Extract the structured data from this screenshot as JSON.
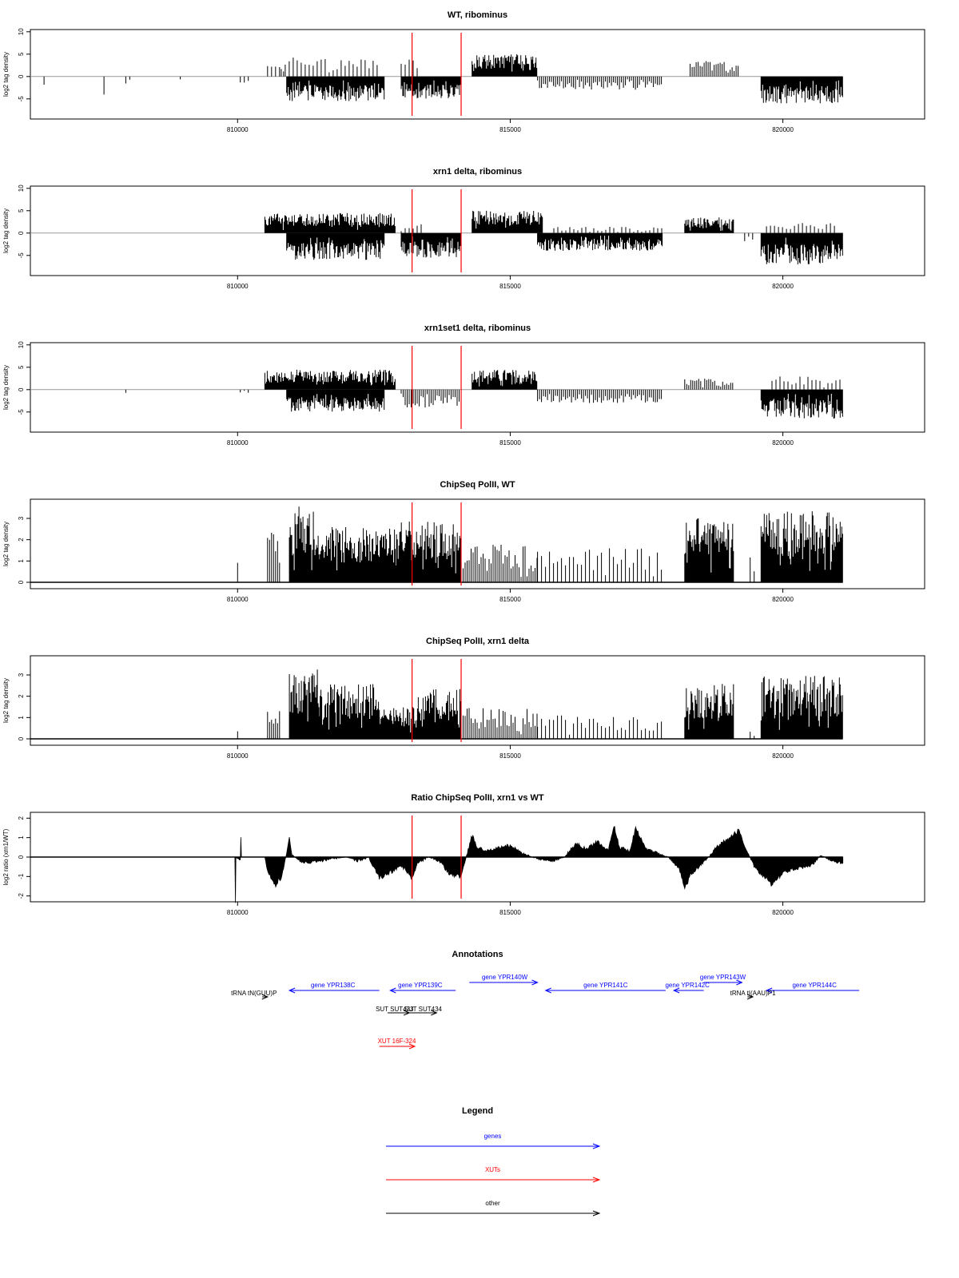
{
  "chart_data": [
    {
      "type": "bar",
      "title": "WT, ribominus",
      "ylabel": "log2 tag density",
      "xlabel": "",
      "xlim": [
        806200,
        822600
      ],
      "ylim": [
        -9.5,
        10.5
      ],
      "yticks": [
        10,
        5,
        0,
        -5
      ],
      "ytick_labels": [
        "10",
        "5",
        "0",
        "-5"
      ],
      "xticks": [
        810000,
        815000,
        820000
      ],
      "xtick_labels": [
        "810000",
        "815000",
        "820000"
      ],
      "track_start": 806200,
      "track_end": 821100,
      "markers": [
        813200,
        814100
      ],
      "marker_color": "#ff0000",
      "segments": [
        {
          "x0": 806450,
          "x1": 806500,
          "base": 0,
          "amp": 2,
          "sign": -1,
          "density": "sparse"
        },
        {
          "x0": 807550,
          "x1": 807600,
          "base": 0,
          "amp": 4.5,
          "sign": -1,
          "density": "sparse"
        },
        {
          "x0": 807950,
          "x1": 808050,
          "base": 0,
          "amp": 1.8,
          "sign": -1,
          "density": "sparse"
        },
        {
          "x0": 808950,
          "x1": 809000,
          "base": 0,
          "amp": 1,
          "sign": -1,
          "density": "sparse"
        },
        {
          "x0": 810050,
          "x1": 810200,
          "base": 0,
          "amp": 2,
          "sign": -1,
          "density": "sparse"
        },
        {
          "x0": 810550,
          "x1": 810900,
          "base": 0,
          "amp": 2.5,
          "sign": 1,
          "density": "sparse"
        },
        {
          "x0": 810800,
          "x1": 812600,
          "base": 0,
          "amp": 4.5,
          "sign": 1,
          "density": "sparse"
        },
        {
          "x0": 810900,
          "x1": 812700,
          "base": 0,
          "amp": 5.5,
          "sign": -1,
          "density": "dense"
        },
        {
          "x0": 813000,
          "x1": 813300,
          "base": 0,
          "amp": 4,
          "sign": 1,
          "density": "sparse"
        },
        {
          "x0": 813000,
          "x1": 814100,
          "base": 0,
          "amp": 5,
          "sign": -1,
          "density": "dense"
        },
        {
          "x0": 814300,
          "x1": 815500,
          "base": 0,
          "amp": 5,
          "sign": 1,
          "density": "dense"
        },
        {
          "x0": 815500,
          "x1": 817800,
          "base": 0,
          "amp": 3,
          "sign": -1,
          "density": "medium"
        },
        {
          "x0": 818300,
          "x1": 819200,
          "base": 0,
          "amp": 3.5,
          "sign": 1,
          "density": "medium"
        },
        {
          "x0": 819600,
          "x1": 821100,
          "base": 0,
          "amp": 6,
          "sign": -1,
          "density": "dense"
        }
      ]
    },
    {
      "type": "bar",
      "title": "xrn1 delta, ribominus",
      "ylabel": "log2 tag density",
      "xlabel": "",
      "xlim": [
        806200,
        822600
      ],
      "ylim": [
        -9.5,
        10.5
      ],
      "yticks": [
        10,
        5,
        0,
        -5
      ],
      "ytick_labels": [
        "10",
        "5",
        "0",
        "-5"
      ],
      "xticks": [
        810000,
        815000,
        820000
      ],
      "xtick_labels": [
        "810000",
        "815000",
        "820000"
      ],
      "track_start": 806200,
      "track_end": 821100,
      "markers": [
        813200,
        814100
      ],
      "marker_color": "#ff0000",
      "segments": [
        {
          "x0": 810500,
          "x1": 812900,
          "base": 0,
          "amp": 4.5,
          "sign": 1,
          "density": "dense"
        },
        {
          "x0": 810900,
          "x1": 812700,
          "base": 0,
          "amp": 6,
          "sign": -1,
          "density": "dense"
        },
        {
          "x0": 813000,
          "x1": 814100,
          "base": 0,
          "amp": 5.5,
          "sign": -1,
          "density": "dense"
        },
        {
          "x0": 813000,
          "x1": 813400,
          "base": 0,
          "amp": 2.5,
          "sign": 1,
          "density": "sparse"
        },
        {
          "x0": 814300,
          "x1": 815600,
          "base": 0,
          "amp": 5,
          "sign": 1,
          "density": "dense"
        },
        {
          "x0": 815500,
          "x1": 817800,
          "base": 0,
          "amp": 4,
          "sign": -1,
          "density": "dense"
        },
        {
          "x0": 815800,
          "x1": 817800,
          "base": 0,
          "amp": 1.5,
          "sign": 1,
          "density": "sparse"
        },
        {
          "x0": 818200,
          "x1": 819100,
          "base": 0,
          "amp": 3.5,
          "sign": 1,
          "density": "dense"
        },
        {
          "x0": 819300,
          "x1": 819500,
          "base": 0,
          "amp": 2,
          "sign": -1,
          "density": "sparse"
        },
        {
          "x0": 819600,
          "x1": 821100,
          "base": 0,
          "amp": 7,
          "sign": -1,
          "density": "dense"
        },
        {
          "x0": 819700,
          "x1": 821000,
          "base": 0,
          "amp": 2.5,
          "sign": 1,
          "density": "sparse"
        }
      ]
    },
    {
      "type": "bar",
      "title": "xrn1set1 delta, ribominus",
      "ylabel": "log2 tag density",
      "xlabel": "",
      "xlim": [
        806200,
        822600
      ],
      "ylim": [
        -9.5,
        10.5
      ],
      "yticks": [
        10,
        5,
        0,
        -5
      ],
      "ytick_labels": [
        "10",
        "5",
        "0",
        "-5"
      ],
      "xticks": [
        810000,
        815000,
        820000
      ],
      "xtick_labels": [
        "810000",
        "815000",
        "820000"
      ],
      "track_start": 806200,
      "track_end": 821100,
      "markers": [
        813200,
        814100
      ],
      "marker_color": "#ff0000",
      "segments": [
        {
          "x0": 807950,
          "x1": 808000,
          "base": 0,
          "amp": 1,
          "sign": -1,
          "density": "sparse"
        },
        {
          "x0": 810050,
          "x1": 810200,
          "base": 0,
          "amp": 1.5,
          "sign": -1,
          "density": "sparse"
        },
        {
          "x0": 810500,
          "x1": 812900,
          "base": 0,
          "amp": 4.5,
          "sign": 1,
          "density": "dense"
        },
        {
          "x0": 810900,
          "x1": 812700,
          "base": 0,
          "amp": 5,
          "sign": -1,
          "density": "dense"
        },
        {
          "x0": 813000,
          "x1": 814100,
          "base": 0,
          "amp": 4,
          "sign": -1,
          "density": "medium"
        },
        {
          "x0": 814300,
          "x1": 815500,
          "base": 0,
          "amp": 4.5,
          "sign": 1,
          "density": "dense"
        },
        {
          "x0": 815500,
          "x1": 817800,
          "base": 0,
          "amp": 3,
          "sign": -1,
          "density": "medium"
        },
        {
          "x0": 818200,
          "x1": 819100,
          "base": 0,
          "amp": 2.5,
          "sign": 1,
          "density": "medium"
        },
        {
          "x0": 819600,
          "x1": 821100,
          "base": 0,
          "amp": 6.5,
          "sign": -1,
          "density": "dense"
        },
        {
          "x0": 819800,
          "x1": 821100,
          "base": 0,
          "amp": 3,
          "sign": 1,
          "density": "sparse"
        }
      ]
    },
    {
      "type": "bar",
      "title": "ChipSeq PolII, WT",
      "ylabel": "log2 tag density",
      "xlabel": "",
      "xlim": [
        806200,
        822600
      ],
      "ylim": [
        -0.3,
        3.9
      ],
      "yticks": [
        0,
        1,
        2,
        3
      ],
      "ytick_labels": [
        "0",
        "1",
        "2",
        "3"
      ],
      "xticks": [
        810000,
        815000,
        820000
      ],
      "xtick_labels": [
        "810000",
        "815000",
        "820000"
      ],
      "track_start": 806200,
      "track_end": 821100,
      "markers": [
        813200,
        814100
      ],
      "marker_color": "#ff0000",
      "segments": [
        {
          "x0": 810000,
          "x1": 810010,
          "base": 0,
          "amp": 1.5,
          "sign": 1,
          "density": "sparse"
        },
        {
          "x0": 810550,
          "x1": 810800,
          "base": 0,
          "amp": 2.5,
          "sign": 1,
          "density": "medium"
        },
        {
          "x0": 810950,
          "x1": 811500,
          "base": 0,
          "amp": 3.6,
          "sign": 1,
          "density": "dense"
        },
        {
          "x0": 811500,
          "x1": 812900,
          "base": 0,
          "amp": 2.6,
          "sign": 1,
          "density": "dense"
        },
        {
          "x0": 812900,
          "x1": 814100,
          "base": 0,
          "amp": 2.9,
          "sign": 1,
          "density": "dense"
        },
        {
          "x0": 814100,
          "x1": 815500,
          "base": 0,
          "amp": 1.8,
          "sign": 1,
          "density": "medium"
        },
        {
          "x0": 815500,
          "x1": 817800,
          "base": 0,
          "amp": 1.6,
          "sign": 1,
          "density": "sparse"
        },
        {
          "x0": 818200,
          "x1": 819100,
          "base": 0,
          "amp": 3.0,
          "sign": 1,
          "density": "dense"
        },
        {
          "x0": 819400,
          "x1": 819500,
          "base": 0,
          "amp": 1.2,
          "sign": 1,
          "density": "sparse"
        },
        {
          "x0": 819600,
          "x1": 821100,
          "base": 0,
          "amp": 3.4,
          "sign": 1,
          "density": "dense"
        }
      ]
    },
    {
      "type": "bar",
      "title": "ChipSeq PolII, xrn1 delta",
      "ylabel": "log2 tag density",
      "xlabel": "",
      "xlim": [
        806200,
        822600
      ],
      "ylim": [
        -0.3,
        3.9
      ],
      "yticks": [
        0,
        1,
        2,
        3
      ],
      "ytick_labels": [
        "0",
        "1",
        "2",
        "3"
      ],
      "xticks": [
        810000,
        815000,
        820000
      ],
      "xtick_labels": [
        "810000",
        "815000",
        "820000"
      ],
      "track_start": 806200,
      "track_end": 821100,
      "markers": [
        813200,
        814100
      ],
      "marker_color": "#ff0000",
      "segments": [
        {
          "x0": 810000,
          "x1": 810010,
          "base": 0,
          "amp": 0.7,
          "sign": 1,
          "density": "sparse"
        },
        {
          "x0": 810550,
          "x1": 810800,
          "base": 0,
          "amp": 1.7,
          "sign": 1,
          "density": "medium"
        },
        {
          "x0": 810950,
          "x1": 811500,
          "base": 0,
          "amp": 3.3,
          "sign": 1,
          "density": "dense"
        },
        {
          "x0": 811500,
          "x1": 812600,
          "base": 0,
          "amp": 2.6,
          "sign": 1,
          "density": "dense"
        },
        {
          "x0": 812600,
          "x1": 813300,
          "base": 0,
          "amp": 1.5,
          "sign": 1,
          "density": "dense"
        },
        {
          "x0": 813300,
          "x1": 814100,
          "base": 0,
          "amp": 2.4,
          "sign": 1,
          "density": "dense"
        },
        {
          "x0": 814100,
          "x1": 815500,
          "base": 0,
          "amp": 1.5,
          "sign": 1,
          "density": "medium"
        },
        {
          "x0": 815500,
          "x1": 817800,
          "base": 0,
          "amp": 1.1,
          "sign": 1,
          "density": "sparse"
        },
        {
          "x0": 818200,
          "x1": 819100,
          "base": 0,
          "amp": 2.6,
          "sign": 1,
          "density": "dense"
        },
        {
          "x0": 819400,
          "x1": 819500,
          "base": 0,
          "amp": 0.4,
          "sign": 1,
          "density": "sparse"
        },
        {
          "x0": 819600,
          "x1": 821100,
          "base": 0,
          "amp": 3.0,
          "sign": 1,
          "density": "dense"
        }
      ]
    },
    {
      "type": "area",
      "title": "Ratio ChipSeq PolII, xrn1 vs WT",
      "ylabel": "log2 ratio (xrn1/WT)",
      "xlabel": "",
      "xlim": [
        806200,
        822600
      ],
      "ylim": [
        -2.3,
        2.3
      ],
      "yticks": [
        2,
        1,
        0,
        -1,
        -2
      ],
      "ytick_labels": [
        "2",
        "1",
        "0",
        "-1",
        "-2"
      ],
      "xticks": [
        810000,
        815000,
        820000
      ],
      "xtick_labels": [
        "810000",
        "815000",
        "820000"
      ],
      "markers": [
        813200,
        814100
      ],
      "marker_color": "#ff0000",
      "x": [
        806200,
        809950,
        809960,
        809970,
        810000,
        810050,
        810060,
        810070,
        810500,
        810550,
        810700,
        810750,
        810800,
        810900,
        810950,
        811000,
        811200,
        811500,
        811700,
        812000,
        812200,
        812400,
        812600,
        812800,
        813000,
        813200,
        813300,
        813500,
        813700,
        813900,
        814100,
        814300,
        814400,
        814600,
        814800,
        815000,
        815200,
        815500,
        815800,
        816000,
        816200,
        816400,
        816600,
        816800,
        816900,
        817000,
        817200,
        817300,
        817500,
        817700,
        817900,
        818100,
        818200,
        818300,
        818500,
        818700,
        818800,
        819000,
        819200,
        819300,
        819500,
        819700,
        819800,
        820000,
        820200,
        820500,
        820700,
        820900,
        821100
      ],
      "y": [
        0,
        0,
        -2.2,
        0,
        -0.1,
        -0.1,
        1.1,
        0,
        0,
        -0.7,
        -1.5,
        -1.1,
        -1.2,
        0.2,
        1.0,
        0.1,
        -0.3,
        -0.2,
        -0.1,
        0.0,
        -0.2,
        0.0,
        -1.1,
        -0.8,
        -0.4,
        -1.1,
        -0.3,
        0.0,
        -0.2,
        -0.9,
        -1.0,
        1.1,
        0.5,
        0.3,
        0.5,
        0.6,
        0.2,
        -0.1,
        -0.2,
        0.0,
        0.7,
        0.4,
        0.8,
        0.3,
        1.6,
        0.5,
        0.3,
        1.5,
        0.4,
        0.2,
        0.0,
        -0.6,
        -1.7,
        -0.9,
        -0.4,
        0.2,
        0.6,
        0.9,
        1.4,
        0.5,
        -0.6,
        -1.1,
        -1.4,
        -0.8,
        -0.6,
        -0.5,
        0.1,
        -0.2,
        -0.3
      ]
    }
  ],
  "annotations": {
    "title": "Annotations",
    "features": [
      {
        "label": "gene YPR138C",
        "start": 810950,
        "end": 812600,
        "dir": "left",
        "row": 1,
        "color": "#0000ff",
        "label_at": 811750
      },
      {
        "label": "gene YPR139C",
        "start": 812800,
        "end": 814000,
        "dir": "left",
        "row": 1,
        "color": "#0000ff",
        "label_at": 813350
      },
      {
        "label": "gene YPR140W",
        "start": 814250,
        "end": 815500,
        "dir": "right",
        "row": 0,
        "color": "#0000ff",
        "label_at": 814900
      },
      {
        "label": "gene YPR141C",
        "start": 815650,
        "end": 817850,
        "dir": "left",
        "row": 1,
        "color": "#0000ff",
        "label_at": 816750
      },
      {
        "label": "gene YPR142C",
        "start": 818000,
        "end": 818550,
        "dir": "left",
        "row": 1,
        "color": "#0000ff",
        "label_at": 818250
      },
      {
        "label": "gene YPR143W",
        "start": 818550,
        "end": 819250,
        "dir": "right",
        "row": 0,
        "color": "#0000ff",
        "label_at": 818900
      },
      {
        "label": "gene YPR144C",
        "start": 819700,
        "end": 821400,
        "dir": "left",
        "row": 1,
        "color": "#0000ff",
        "label_at": 820580
      },
      {
        "label": "tRNA tN(GUU)P",
        "start": 810450,
        "end": 810550,
        "dir": "right",
        "row": 2,
        "color": "#000000",
        "label_at": 810300
      },
      {
        "label": "tRNA tI(AAU)P1",
        "start": 819350,
        "end": 819450,
        "dir": "right",
        "row": 2,
        "color": "#000000",
        "label_at": 819450
      },
      {
        "label": "SUT SUT433",
        "start": 812750,
        "end": 813150,
        "dir": "right",
        "row": 3,
        "color": "#000000",
        "label_at": 812880
      },
      {
        "label": "SUT SUT434",
        "start": 813100,
        "end": 813650,
        "dir": "right",
        "row": 3,
        "color": "#000000",
        "label_at": 813400
      },
      {
        "label": "XUT 16F-324",
        "start": 812600,
        "end": 813250,
        "dir": "right",
        "row": 4,
        "color": "#ff0000",
        "label_at": 812920
      }
    ]
  },
  "legend": {
    "title": "Legend",
    "items": [
      {
        "label": "genes",
        "color": "#0000ff"
      },
      {
        "label": "XUTs",
        "color": "#ff0000"
      },
      {
        "label": "other",
        "color": "#000000"
      }
    ]
  }
}
